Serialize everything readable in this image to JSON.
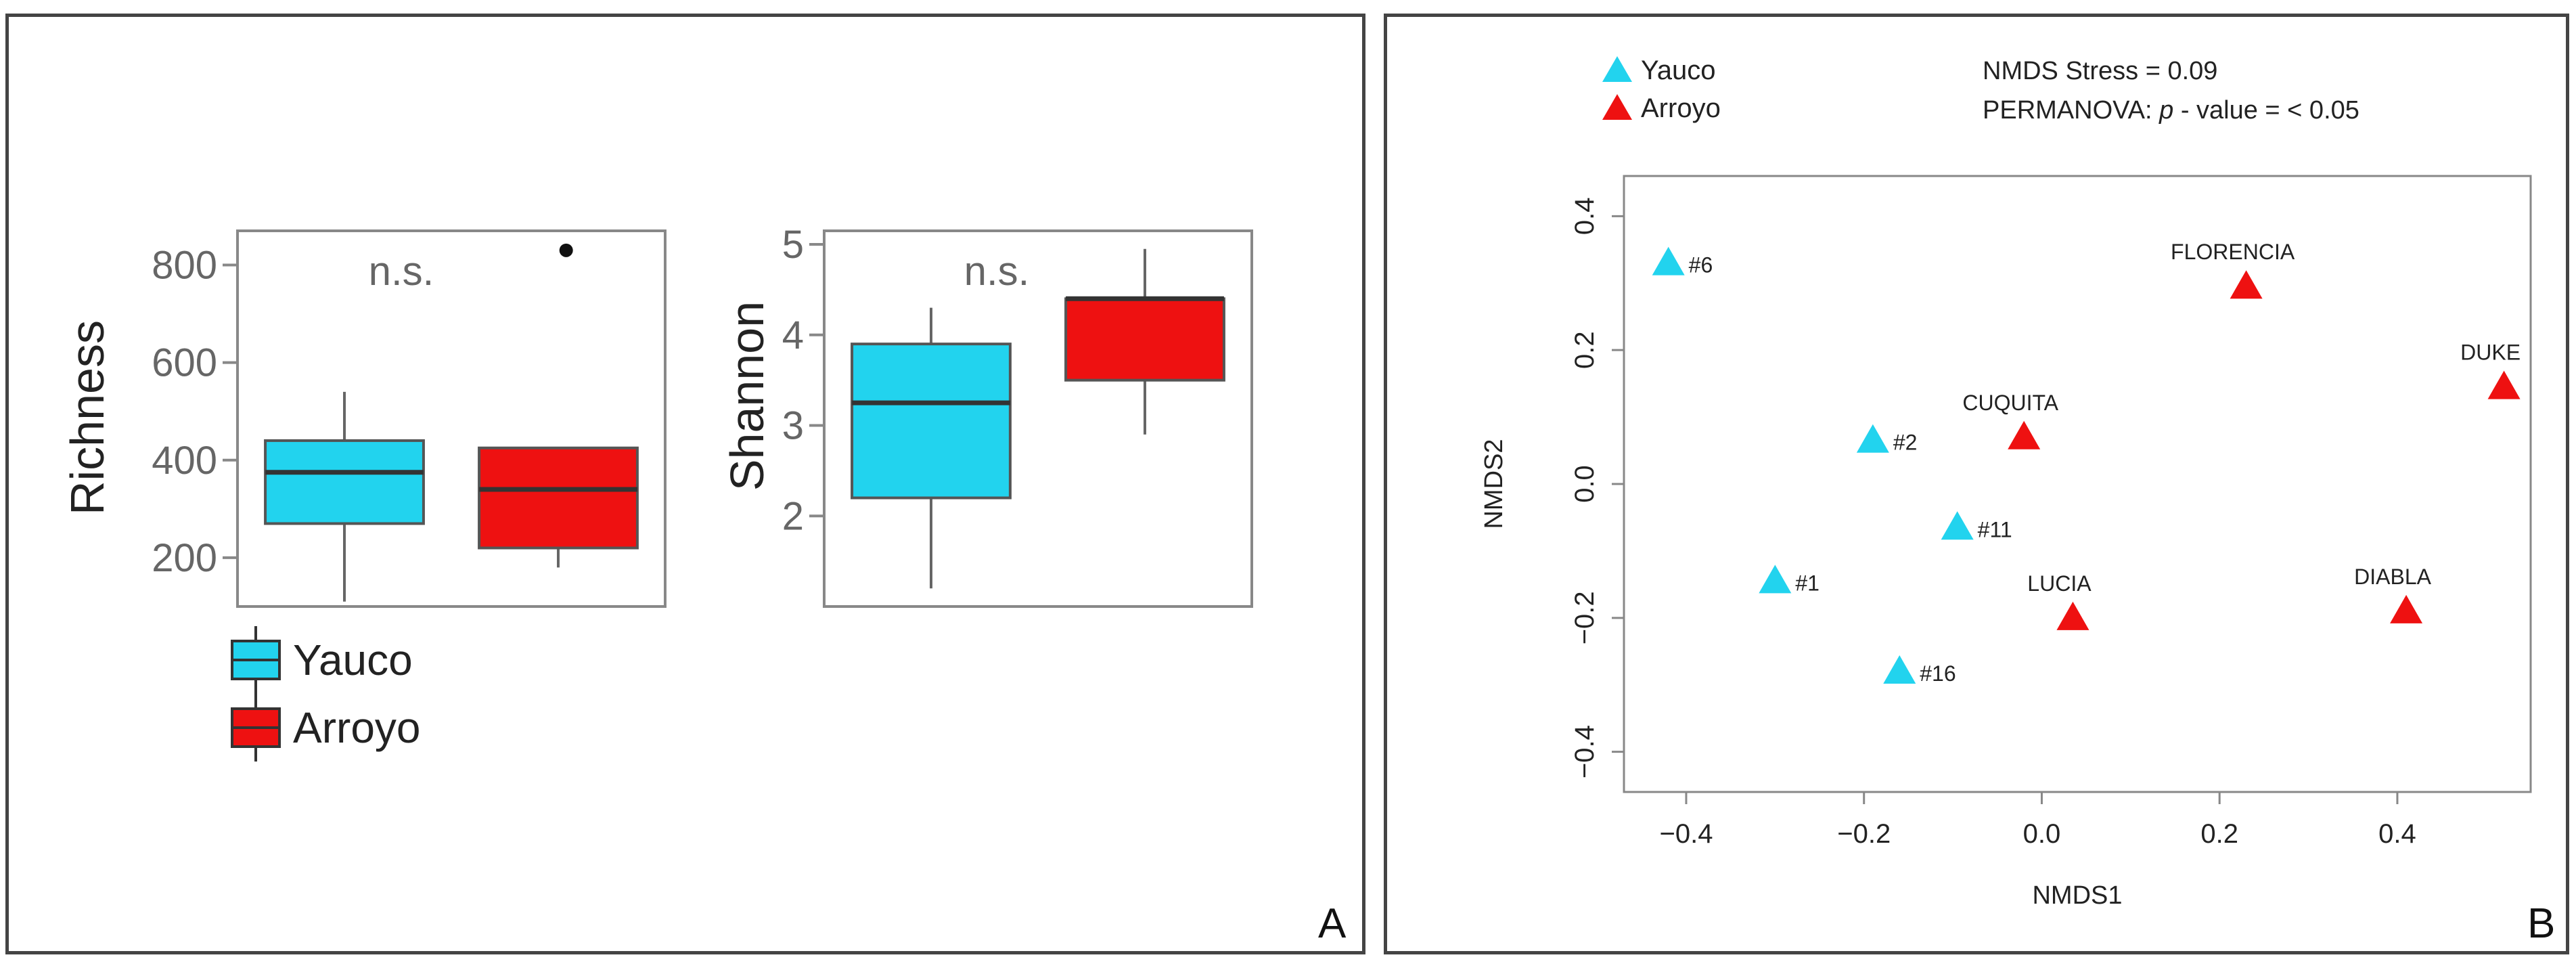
{
  "panel_a": {
    "letter": "A",
    "richness": {
      "ylabel": "Richness",
      "yticks": [
        "200",
        "400",
        "600",
        "800"
      ],
      "annotation": "n.s.",
      "outlier_value": 830
    },
    "shannon": {
      "ylabel": "Shannon",
      "yticks": [
        "2",
        "3",
        "4",
        "5"
      ],
      "annotation": "n.s."
    },
    "legend": [
      "Yauco",
      "Arroyo"
    ]
  },
  "panel_b": {
    "letter": "B",
    "legend": [
      "Yauco",
      "Arroyo"
    ],
    "stress_text": "NMDS Stress = 0.09",
    "permanova_prefix": "PERMANOVA: ",
    "permanova_p": "p",
    "permanova_suffix": " - value = < 0.05",
    "xlabel": "NMDS1",
    "ylabel": "NMDS2",
    "xticks": [
      "−0.4",
      "−0.2",
      "0.0",
      "0.2",
      "0.4"
    ],
    "yticks": [
      "0.4",
      "0.2",
      "0.0",
      "−0.2",
      "−0.4"
    ]
  },
  "colors": {
    "yauco": "#22d3ee",
    "arroyo": "#ee1111",
    "axis": "#666666",
    "text": "#222222"
  },
  "chart_data": [
    {
      "type": "box",
      "title": "",
      "ylabel": "Richness",
      "ylim": [
        100,
        870
      ],
      "series": [
        {
          "name": "Yauco",
          "min": 110,
          "q1": 270,
          "median": 375,
          "q3": 440,
          "max": 540
        },
        {
          "name": "Arroyo",
          "min": 180,
          "q1": 220,
          "median": 340,
          "q3": 425,
          "max": 425,
          "outliers": [
            830
          ]
        }
      ]
    },
    {
      "type": "box",
      "title": "",
      "ylabel": "Shannon",
      "ylim": [
        1.0,
        5.15
      ],
      "series": [
        {
          "name": "Yauco",
          "min": 1.2,
          "q1": 2.2,
          "median": 3.25,
          "q3": 3.9,
          "max": 4.3
        },
        {
          "name": "Arroyo",
          "min": 2.9,
          "q1": 3.5,
          "median": 4.4,
          "q3": 4.4,
          "max": 4.95
        }
      ]
    },
    {
      "type": "scatter",
      "title": "",
      "xlabel": "NMDS1",
      "ylabel": "NMDS2",
      "xlim": [
        -0.47,
        0.55
      ],
      "ylim": [
        -0.46,
        0.46
      ],
      "series": [
        {
          "name": "Yauco",
          "points": [
            {
              "label": "#6",
              "x": -0.42,
              "y": 0.33
            },
            {
              "label": "#2",
              "x": -0.19,
              "y": 0.065
            },
            {
              "label": "#11",
              "x": -0.095,
              "y": -0.065
            },
            {
              "label": "#1",
              "x": -0.3,
              "y": -0.145
            },
            {
              "label": "#16",
              "x": -0.16,
              "y": -0.28
            }
          ]
        },
        {
          "name": "Arroyo",
          "points": [
            {
              "label": "FLORENCIA",
              "x": 0.23,
              "y": 0.295
            },
            {
              "label": "DUKE",
              "x": 0.52,
              "y": 0.145
            },
            {
              "label": "CUQUITA",
              "x": -0.02,
              "y": 0.07
            },
            {
              "label": "LUCIA",
              "x": 0.035,
              "y": -0.2
            },
            {
              "label": "DIABLA",
              "x": 0.41,
              "y": -0.19
            }
          ]
        }
      ]
    }
  ]
}
